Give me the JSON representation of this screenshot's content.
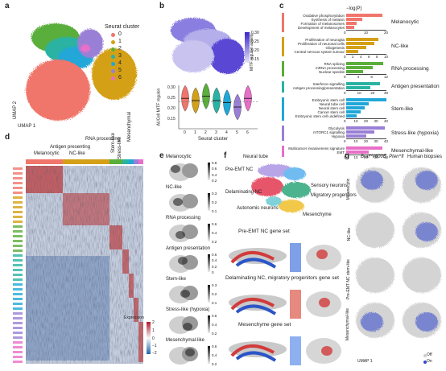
{
  "panels": {
    "a": "a",
    "b": "b",
    "c": "c",
    "d": "d",
    "e": "e",
    "f": "f",
    "g": "g"
  },
  "colors": {
    "c0": "#f0756b",
    "c1": "#d4a017",
    "c2": "#5aae3a",
    "c3": "#29b3a3",
    "c4": "#20a7d8",
    "c5": "#9a7fd6",
    "c6": "#e86fc8",
    "mitf_high": "#3a24c8",
    "mitf_low": "#d8d8f2"
  },
  "panel_a": {
    "legend_title": "Seurat cluster",
    "clusters": [
      "0",
      "1",
      "2",
      "3",
      "4",
      "5",
      "6"
    ],
    "axis_x": "UMAP 1",
    "axis_y": "UMAP 2"
  },
  "panel_b": {
    "colorbar_ticks": [
      "0.30",
      "0.25",
      "0.20",
      "0.15"
    ],
    "colorbar_label": "MITF regulon activity",
    "violin_ylabel": "AUCell MITF regulon",
    "violin_yticks": [
      "0.30",
      "0.25",
      "0.20",
      "0.15"
    ],
    "violin_xticks": [
      "0",
      "1",
      "2",
      "3",
      "4",
      "5",
      "6"
    ],
    "violin_xlabel": "Seurat cluster"
  },
  "panel_c": {
    "axis_title": "−log(P)",
    "groups": [
      {
        "name": "Melanocytic",
        "ticks": [
          "0",
          "10",
          "20"
        ],
        "terms": [
          "Oxidative phosphorylation",
          "Synthesis of melanin",
          "Formation of melanosomes",
          "Development of melanocytes"
        ]
      },
      {
        "name": "NC-like",
        "ticks": [
          "0",
          "2",
          "4",
          "6",
          "8",
          "10"
        ],
        "terms": [
          "Proliferation of neuroglia",
          "Proliferation of neuronal cells",
          "Gliogenesis",
          "Central nervous system tumour"
        ]
      },
      {
        "name": "RNA processing",
        "ticks": [
          "0",
          "4",
          "8",
          "12"
        ],
        "terms": [
          "RNA splicing",
          "mRNA processing",
          "Nuclear speckle"
        ]
      },
      {
        "name": "Antigen presentation",
        "ticks": [
          "0",
          "10",
          "20",
          "30"
        ],
        "terms": [
          "Interferon signalling",
          "Antigen processing/presentation"
        ]
      },
      {
        "name": "Stem-like",
        "ticks": [
          "0",
          "10",
          "20",
          "30",
          "40"
        ],
        "terms": [
          "Embryonic stem cell",
          "Neural tube cell",
          "Neural stem cell",
          "Cancer stem cell",
          "Embryonic stem cell undefined"
        ]
      },
      {
        "name": "Stress-like (hypoxia)",
        "ticks": [
          "0",
          "10",
          "20",
          "30",
          "40"
        ],
        "terms": [
          "Glycolysis",
          "mTORC1 signalling",
          "Hypoxia"
        ]
      },
      {
        "name": "Mesenchymal-like",
        "ticks": [
          "0",
          "10",
          "20",
          "30",
          "40"
        ],
        "terms": [
          "Multicancer invasiveness signature",
          "EMT"
        ]
      }
    ]
  },
  "panel_d": {
    "headers": [
      "Melanocytic",
      "NC-like",
      "Antigen presenting",
      "RNA processing",
      "Stem-like",
      "Stress-like",
      "Mesenchymal"
    ],
    "legend_title": "Expression",
    "legend_ticks": [
      "2",
      "1",
      "0",
      "−1",
      "−2"
    ]
  },
  "panel_e": {
    "maps": [
      {
        "title": "Melanocytic",
        "ticks": [
          "0.8",
          "0.6",
          "0.4",
          "0.2"
        ]
      },
      {
        "title": "NC-like",
        "ticks": [
          "0.3",
          "0.2",
          "0.1"
        ]
      },
      {
        "title": "RNA processing",
        "ticks": [
          "0.6",
          "0.4",
          "0.2"
        ]
      },
      {
        "title": "Antigen presentation",
        "ticks": [
          "0.6",
          "0.4",
          "0.2",
          "0"
        ]
      },
      {
        "title": "Stem-like",
        "ticks": [
          "0.3",
          "0.2",
          "0.1"
        ]
      },
      {
        "title": "Stress-like (hypoxia)",
        "ticks": [
          "0.6",
          "0.4",
          "0.2"
        ]
      },
      {
        "title": "Mesenchymal-like",
        "ticks": [
          "0.6",
          "0.4",
          "0.2"
        ]
      }
    ]
  },
  "panel_f": {
    "labels": [
      "Neural tube",
      "Pre-EMT NC",
      "Delaminating NC",
      "Sensory neurons",
      "Migratory progenitors",
      "Autonomic neurons",
      "Mesenchyme"
    ],
    "gene_sets": [
      "Pre-EMT NC gene set",
      "Delaminating NC, migratory progenitors gene set",
      "Mesenchyme gene set"
    ]
  },
  "panel_g": {
    "col_left": "Braf^V600E; Pten^fl",
    "col_right": "Human biopsies",
    "rows": [
      "Melanocytic",
      "NC-like",
      "Pre-EMT NC stem-like",
      "Mesenchymal-like"
    ],
    "axis_x": "UMAP 1",
    "axis_y": "UMAP 2",
    "legend": [
      "Off",
      "On"
    ]
  }
}
